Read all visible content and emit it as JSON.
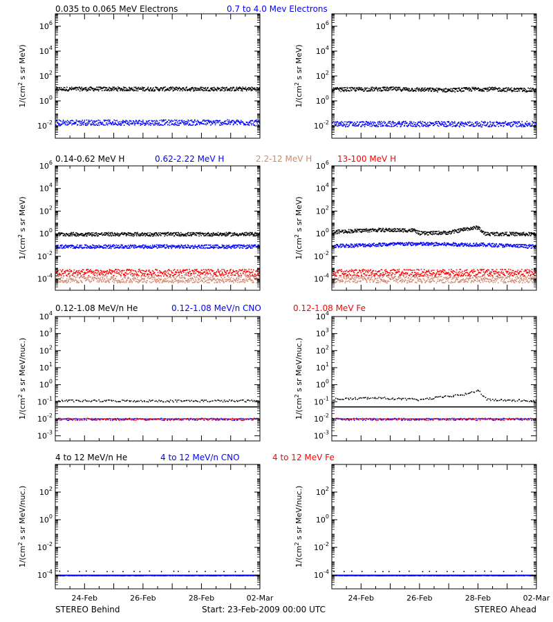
{
  "footer": {
    "left": "STEREO Behind",
    "center": "Start: 23-Feb-2009 00:00 UTC",
    "right": "STEREO Ahead"
  },
  "x_ticks": [
    "24-Feb",
    "26-Feb",
    "28-Feb",
    "02-Mar"
  ],
  "chart_data": [
    {
      "type": "scatter",
      "row": 1,
      "side": "STEREO Behind",
      "legend": [
        {
          "text": "0.035 to 0.065 MeV Electrons",
          "color": "#000000"
        },
        {
          "text": "0.7 to 4.0 Mev Electrons",
          "color": "#0000ff"
        }
      ],
      "ylabel": "1/(cm2 s sr MeV)",
      "ylog": true,
      "ylim_exp": [
        -3,
        7
      ],
      "yticks_exp": [
        -2,
        0,
        2,
        4,
        6
      ],
      "xlim_days": [
        0,
        7
      ],
      "xticks_days": [
        1,
        3,
        5,
        7
      ],
      "series": [
        {
          "name": "0.035 to 0.065 MeV Electrons",
          "color": "#000000",
          "points": [
            [
              0,
              10
            ],
            [
              7,
              10
            ]
          ]
        },
        {
          "name": "0.7 to 4.0 Mev Electrons",
          "color": "#0000ff",
          "points": [
            [
              0,
              0.02
            ],
            [
              7,
              0.02
            ]
          ]
        }
      ]
    },
    {
      "type": "scatter",
      "row": 1,
      "side": "STEREO Ahead",
      "legend": [],
      "ylabel": "1/(cm2 s sr MeV)",
      "ylog": true,
      "ylim_exp": [
        -3,
        7
      ],
      "yticks_exp": [
        -2,
        0,
        2,
        4,
        6
      ],
      "xlim_days": [
        0,
        7
      ],
      "xticks_days": [
        1,
        3,
        5,
        7
      ],
      "series": [
        {
          "color": "#000000",
          "points": [
            [
              0,
              9
            ],
            [
              2,
              10
            ],
            [
              4,
              8
            ],
            [
              5,
              10
            ],
            [
              7,
              8
            ]
          ]
        },
        {
          "color": "#0000ff",
          "points": [
            [
              0,
              0.015
            ],
            [
              7,
              0.015
            ]
          ]
        }
      ]
    },
    {
      "type": "scatter",
      "row": 2,
      "side": "STEREO Behind",
      "legend": [
        {
          "text": "0.14-0.62 MeV H",
          "color": "#000000"
        },
        {
          "text": "0.62-2.22 MeV H",
          "color": "#0000ff"
        },
        {
          "text": "2.2-12 MeV H",
          "color": "#d2876e"
        },
        {
          "text": "13-100 MeV H",
          "color": "#ff0000"
        }
      ],
      "ylabel": "1/(cm2 s sr MeV)",
      "ylog": true,
      "ylim_exp": [
        -5,
        6
      ],
      "yticks_exp": [
        -4,
        -2,
        0,
        2,
        4,
        6
      ],
      "xlim_days": [
        0,
        7
      ],
      "xticks_days": [
        1,
        3,
        5,
        7
      ],
      "series": [
        {
          "name": "0.14-0.62 MeV H",
          "color": "#000000",
          "points": [
            [
              0,
              1
            ],
            [
              7,
              1
            ]
          ]
        },
        {
          "name": "0.62-2.22 MeV H",
          "color": "#0000ff",
          "points": [
            [
              0,
              0.08
            ],
            [
              7,
              0.08
            ]
          ]
        },
        {
          "name": "2.2-12 MeV H",
          "color": "#d2876e",
          "points": [
            [
              0,
              0.0001
            ],
            [
              7,
              0.0001
            ]
          ]
        },
        {
          "name": "13-100 MeV H",
          "color": "#ff0000",
          "points": [
            [
              0,
              0.0004
            ],
            [
              7,
              0.0004
            ]
          ]
        }
      ]
    },
    {
      "type": "scatter",
      "row": 2,
      "side": "STEREO Ahead",
      "legend": [],
      "ylabel": "1/(cm2 s sr MeV)",
      "ylog": true,
      "ylim_exp": [
        -5,
        6
      ],
      "yticks_exp": [
        -4,
        -2,
        0,
        2,
        4,
        6
      ],
      "xlim_days": [
        0,
        7
      ],
      "xticks_days": [
        1,
        3,
        5,
        7
      ],
      "series": [
        {
          "color": "#000000",
          "points": [
            [
              0,
              1.6
            ],
            [
              1.5,
              2.4
            ],
            [
              2.8,
              2.2
            ],
            [
              3.0,
              1.2
            ],
            [
              4.0,
              1.4
            ],
            [
              4.6,
              3.0
            ],
            [
              5.0,
              4.0
            ],
            [
              5.2,
              1.1
            ],
            [
              7,
              1
            ]
          ]
        },
        {
          "color": "#0000ff",
          "points": [
            [
              0,
              0.09
            ],
            [
              2.5,
              0.14
            ],
            [
              5.0,
              0.12
            ],
            [
              7,
              0.08
            ]
          ]
        },
        {
          "color": "#d2876e",
          "points": [
            [
              0,
              0.0001
            ],
            [
              7,
              0.0001
            ]
          ]
        },
        {
          "color": "#ff0000",
          "points": [
            [
              0,
              0.0004
            ],
            [
              7,
              0.0004
            ]
          ]
        }
      ]
    },
    {
      "type": "scatter",
      "row": 3,
      "side": "STEREO Behind",
      "legend": [
        {
          "text": "0.12-1.08 MeV/n He",
          "color": "#000000"
        },
        {
          "text": "0.12-1.08 MeV/n CNO",
          "color": "#0000ff"
        },
        {
          "text": "0.12-1.08 MeV Fe",
          "color": "#ff0000"
        }
      ],
      "ylabel": "1/(cm2 s sr MeV/nuc.)",
      "ylog": true,
      "ylim_exp": [
        -3.3,
        4
      ],
      "yticks_exp": [
        -3,
        -2,
        -1,
        0,
        1,
        2,
        3,
        4
      ],
      "xlim_days": [
        0,
        7
      ],
      "xticks_days": [
        1,
        3,
        5,
        7
      ],
      "series": [
        {
          "name": "0.12-1.08 MeV/n He",
          "color": "#000000",
          "points": [
            [
              0,
              0.12
            ],
            [
              7,
              0.12
            ]
          ]
        },
        {
          "name": "0.12-1.08 MeV/n CNO",
          "color": "#0000ff",
          "points": [
            [
              0,
              0.01
            ],
            [
              7,
              0.01
            ]
          ]
        },
        {
          "name": "0.12-1.08 MeV Fe",
          "color": "#ff0000",
          "points": [
            [
              0,
              0.01
            ],
            [
              7,
              0.01
            ]
          ]
        }
      ]
    },
    {
      "type": "scatter",
      "row": 3,
      "side": "STEREO Ahead",
      "legend": [],
      "ylabel": "1/(cm2 s sr MeV/nuc.)",
      "ylog": true,
      "ylim_exp": [
        -3.3,
        4
      ],
      "yticks_exp": [
        -3,
        -2,
        -1,
        0,
        1,
        2,
        3,
        4
      ],
      "xlim_days": [
        0,
        7
      ],
      "xticks_days": [
        1,
        3,
        5,
        7
      ],
      "series": [
        {
          "color": "#000000",
          "points": [
            [
              0,
              0.15
            ],
            [
              1.5,
              0.18
            ],
            [
              3.0,
              0.14
            ],
            [
              4.6,
              0.3
            ],
            [
              5.0,
              0.5
            ],
            [
              5.3,
              0.14
            ],
            [
              7,
              0.12
            ]
          ]
        },
        {
          "color": "#0000ff",
          "points": [
            [
              0,
              0.01
            ],
            [
              7,
              0.01
            ]
          ]
        },
        {
          "color": "#ff0000",
          "points": [
            [
              0,
              0.01
            ],
            [
              7,
              0.01
            ]
          ]
        }
      ]
    },
    {
      "type": "scatter",
      "row": 4,
      "side": "STEREO Behind",
      "legend": [
        {
          "text": "4 to 12 MeV/n He",
          "color": "#000000"
        },
        {
          "text": "4 to 12 MeV/n CNO",
          "color": "#0000ff"
        },
        {
          "text": "4 to 12 MeV Fe",
          "color": "#ff0000"
        }
      ],
      "ylabel": "1/(cm2 s sr MeV/nuc.)",
      "ylog": true,
      "ylim_exp": [
        -5,
        4
      ],
      "yticks_exp": [
        -4,
        -2,
        0,
        2
      ],
      "xlim_days": [
        0,
        7
      ],
      "xticks_days": [
        1,
        3,
        5,
        7
      ],
      "series": [
        {
          "name": "4 to 12 MeV/n He",
          "color": "#000000",
          "points": [
            [
              0,
              0.0002
            ],
            [
              7,
              0.0002
            ]
          ]
        },
        {
          "name": "4 to 12 MeV/n CNO",
          "color": "#0000ff",
          "points": [
            [
              0,
              0.0001
            ],
            [
              7,
              0.0001
            ]
          ]
        }
      ]
    },
    {
      "type": "scatter",
      "row": 4,
      "side": "STEREO Ahead",
      "legend": [],
      "ylabel": "1/(cm2 s sr MeV/nuc.)",
      "ylog": true,
      "ylim_exp": [
        -5,
        4
      ],
      "yticks_exp": [
        -4,
        -2,
        0,
        2
      ],
      "xlim_days": [
        0,
        7
      ],
      "xticks_days": [
        1,
        3,
        5,
        7
      ],
      "series": [
        {
          "color": "#000000",
          "points": [
            [
              0,
              0.0002
            ],
            [
              7,
              0.0002
            ]
          ]
        },
        {
          "color": "#0000ff",
          "points": [
            [
              0,
              0.0001
            ],
            [
              7,
              0.0001
            ]
          ]
        }
      ]
    }
  ]
}
